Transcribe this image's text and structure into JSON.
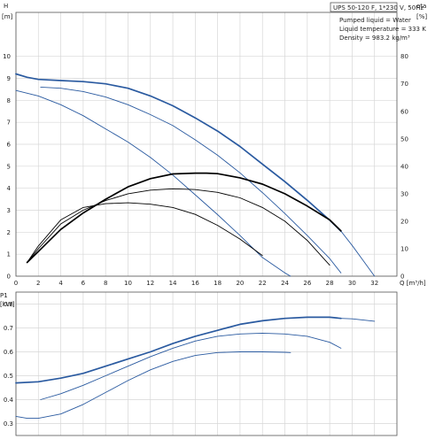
{
  "chart_data": [
    {
      "type": "line",
      "y_axis_label": "H",
      "y_axis_unit": "[m]",
      "y2_axis_label": "eta",
      "y2_axis_unit": "[%]",
      "x_axis_label": "Q [m³/h]",
      "xlim": [
        0,
        34
      ],
      "ylim": [
        0,
        12
      ],
      "y2lim": [
        0,
        96
      ],
      "x_ticks": [
        0,
        2,
        4,
        6,
        8,
        10,
        12,
        14,
        16,
        18,
        20,
        22,
        24,
        26,
        28,
        30,
        32
      ],
      "y_ticks": [
        0,
        1,
        2,
        3,
        4,
        5,
        6,
        7,
        8,
        9,
        10
      ],
      "y2_ticks": [
        0,
        10,
        20,
        30,
        40,
        50,
        60,
        70,
        80
      ],
      "grid": true,
      "legend": {
        "title": "UPS 50-120 F, 1*230 V, 50Hz",
        "lines": [
          "Pumped liquid = Water",
          "Liquid temperature = 333 K",
          "Density = 983.2 kg/m³"
        ],
        "placement": "top-right"
      },
      "series": [
        {
          "kind": "head",
          "color": "#2a5aa0",
          "bold": true,
          "x": [
            0,
            1,
            2,
            4,
            6,
            8,
            10,
            12,
            14,
            16,
            18,
            20,
            22,
            24,
            26,
            28,
            29
          ],
          "y": [
            9.2,
            9.05,
            8.95,
            8.9,
            8.85,
            8.75,
            8.55,
            8.2,
            7.75,
            7.2,
            6.6,
            5.9,
            5.1,
            4.3,
            3.45,
            2.55,
            2.05
          ]
        },
        {
          "kind": "head",
          "color": "#2a5aa0",
          "bold": false,
          "x": [
            29,
            30,
            31,
            32
          ],
          "y": [
            2.05,
            1.4,
            0.7,
            0.0
          ]
        },
        {
          "kind": "head",
          "color": "#2a5aa0",
          "bold": false,
          "x": [
            2.2,
            4,
            6,
            8,
            10,
            12,
            14,
            16,
            18,
            20,
            22,
            24,
            26,
            28,
            29
          ],
          "y": [
            8.6,
            8.55,
            8.4,
            8.15,
            7.8,
            7.35,
            6.85,
            6.2,
            5.5,
            4.7,
            3.8,
            2.85,
            1.85,
            0.8,
            0.15
          ]
        },
        {
          "kind": "head",
          "color": "#2a5aa0",
          "bold": false,
          "x": [
            0,
            2,
            4,
            6,
            8,
            10,
            12,
            14,
            16,
            18,
            20,
            22,
            24,
            24.5
          ],
          "y": [
            8.45,
            8.2,
            7.8,
            7.3,
            6.7,
            6.1,
            5.4,
            4.6,
            3.7,
            2.8,
            1.85,
            0.85,
            0.15,
            0.0
          ]
        },
        {
          "kind": "eta",
          "color": "#000000",
          "bold": true,
          "x": [
            1,
            2,
            4,
            6,
            8,
            10,
            12,
            14,
            16,
            17,
            18,
            20,
            22,
            24,
            26,
            28,
            29
          ],
          "y": [
            5,
            9,
            17,
            23,
            28,
            32.5,
            35.5,
            37.2,
            37.5,
            37.5,
            37.3,
            35.8,
            33.5,
            30,
            25.5,
            20.5,
            16.5
          ]
        },
        {
          "kind": "eta",
          "color": "#000000",
          "bold": false,
          "x": [
            1,
            2,
            4,
            6,
            8,
            10,
            12,
            14,
            16,
            18,
            20,
            22,
            24,
            26,
            28
          ],
          "y": [
            5,
            10,
            19,
            24,
            27.5,
            30,
            31.3,
            31.8,
            31.5,
            30.5,
            28.5,
            25,
            20,
            13,
            4
          ]
        },
        {
          "kind": "eta",
          "color": "#000000",
          "bold": false,
          "x": [
            1,
            2,
            4,
            6,
            8,
            10,
            12,
            14,
            16,
            18,
            20,
            22
          ],
          "y": [
            5,
            11,
            20.5,
            25,
            26.4,
            26.7,
            26.2,
            25,
            22.5,
            18.5,
            13.5,
            7.5
          ]
        }
      ]
    },
    {
      "type": "line",
      "y_axis_label": "P1",
      "y_axis_unit": "[kW]",
      "xlim": [
        0,
        34
      ],
      "ylim": [
        0.25,
        0.85
      ],
      "y_ticks": [
        0.3,
        0.4,
        0.5,
        0.6,
        0.7,
        0.8
      ],
      "y_tick_labels": [
        "0.3",
        "0.4",
        "0.5",
        "0.6",
        "0.7",
        "0.8"
      ],
      "grid": true,
      "series": [
        {
          "kind": "power",
          "color": "#2a5aa0",
          "bold": true,
          "x": [
            0,
            2,
            4,
            6,
            8,
            10,
            12,
            14,
            16,
            18,
            20,
            22,
            24,
            26,
            28,
            29
          ],
          "y": [
            0.47,
            0.475,
            0.49,
            0.51,
            0.54,
            0.57,
            0.6,
            0.635,
            0.665,
            0.69,
            0.715,
            0.73,
            0.74,
            0.745,
            0.745,
            0.74
          ]
        },
        {
          "kind": "power",
          "color": "#2a5aa0",
          "bold": false,
          "x": [
            29,
            30,
            31,
            32
          ],
          "y": [
            0.74,
            0.738,
            0.733,
            0.728
          ]
        },
        {
          "kind": "power",
          "color": "#2a5aa0",
          "bold": false,
          "x": [
            2.2,
            4,
            6,
            8,
            10,
            12,
            14,
            16,
            18,
            20,
            22,
            24,
            26,
            28,
            29
          ],
          "y": [
            0.4,
            0.425,
            0.46,
            0.5,
            0.54,
            0.58,
            0.615,
            0.645,
            0.665,
            0.675,
            0.678,
            0.675,
            0.665,
            0.64,
            0.615
          ]
        },
        {
          "kind": "power",
          "color": "#2a5aa0",
          "bold": false,
          "x": [
            0,
            1,
            2,
            4,
            6,
            8,
            10,
            12,
            14,
            16,
            18,
            20,
            22,
            24,
            24.5
          ],
          "y": [
            0.33,
            0.322,
            0.322,
            0.34,
            0.38,
            0.43,
            0.48,
            0.525,
            0.56,
            0.585,
            0.597,
            0.6,
            0.6,
            0.598,
            0.597
          ]
        }
      ]
    }
  ]
}
